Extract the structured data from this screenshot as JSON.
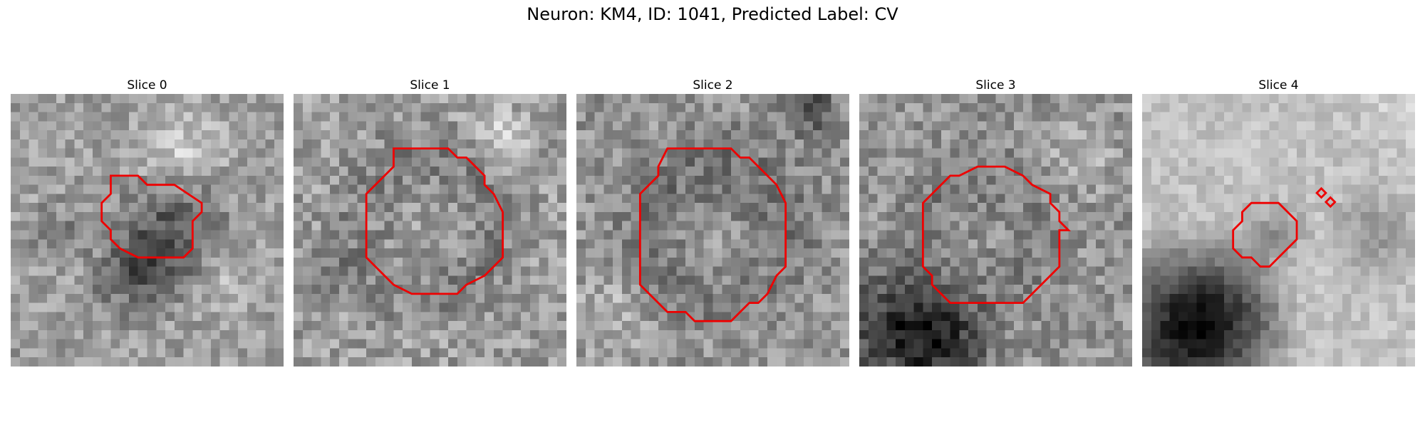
{
  "figure": {
    "title": "Neuron: KM4, ID: 1041, Predicted Label: CV",
    "contour_color": "#ee0000",
    "colormap": "grayscale"
  },
  "panels": [
    {
      "title": "Slice 0"
    },
    {
      "title": "Slice 1"
    },
    {
      "title": "Slice 2"
    },
    {
      "title": "Slice 3"
    },
    {
      "title": "Slice 4"
    }
  ]
}
